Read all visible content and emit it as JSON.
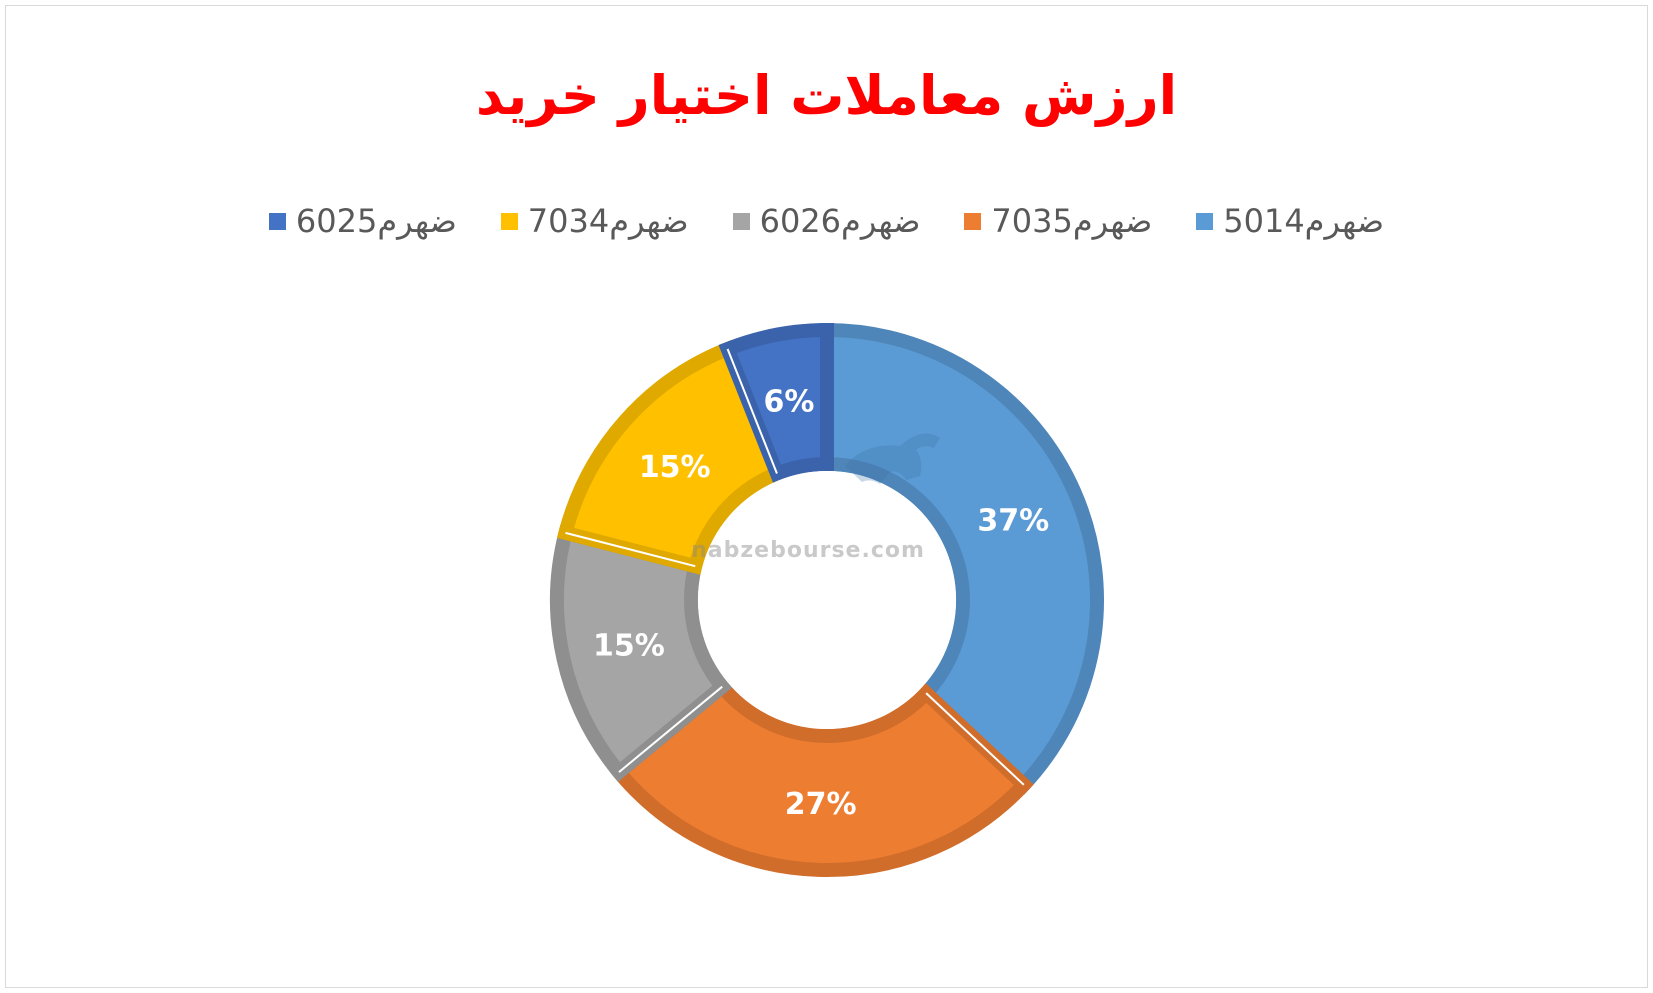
{
  "chart_data": {
    "type": "donut",
    "title": "ارزش معاملات اختیار خرید",
    "legend_position": "top",
    "series": [
      {
        "name": "ضهرم5014",
        "value": 37,
        "label": "37%",
        "color": "#5b9bd5",
        "border": "#4f86b9"
      },
      {
        "name": "ضهرم7035",
        "value": 27,
        "label": "27%",
        "color": "#ed7d31",
        "border": "#d06d2b"
      },
      {
        "name": "ضهرم6026",
        "value": 15,
        "label": "15%",
        "color": "#a5a5a5",
        "border": "#8f8f8f"
      },
      {
        "name": "ضهرم7034",
        "value": 15,
        "label": "15%",
        "color": "#ffc000",
        "border": "#e0a900"
      },
      {
        "name": "ضهرم6025",
        "value": 6,
        "label": "6%",
        "color": "#4472c4",
        "border": "#3b63ab"
      }
    ]
  },
  "watermark": {
    "text": "nabzebourse.com",
    "icon": "bull-icon"
  }
}
